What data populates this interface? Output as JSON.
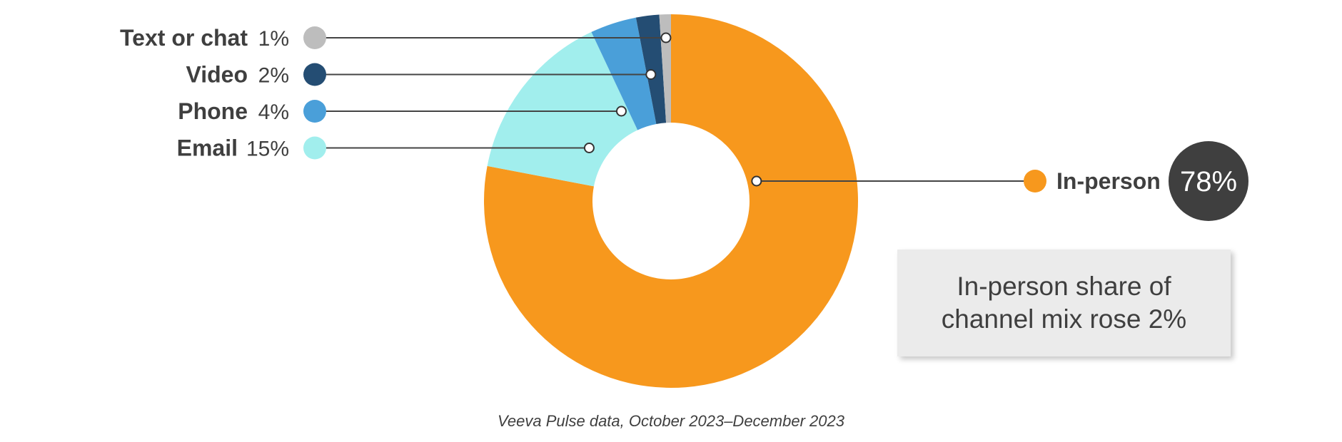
{
  "chart_data": {
    "type": "pie",
    "style": "donut",
    "series": [
      {
        "name": "In-person",
        "value": 78,
        "label": "78%",
        "color": "#f7981d"
      },
      {
        "name": "Email",
        "value": 15,
        "label": "15%",
        "color": "#a1eeed"
      },
      {
        "name": "Phone",
        "value": 4,
        "label": "4%",
        "color": "#4a9fd9"
      },
      {
        "name": "Video",
        "value": 2,
        "label": "2%",
        "color": "#244d73"
      },
      {
        "name": "Text or chat",
        "value": 1,
        "label": "1%",
        "color": "#bdbdbd"
      }
    ],
    "callout": "In-person share of channel mix rose 2%",
    "source": "Veeva Pulse data, October 2023–December 2023"
  }
}
